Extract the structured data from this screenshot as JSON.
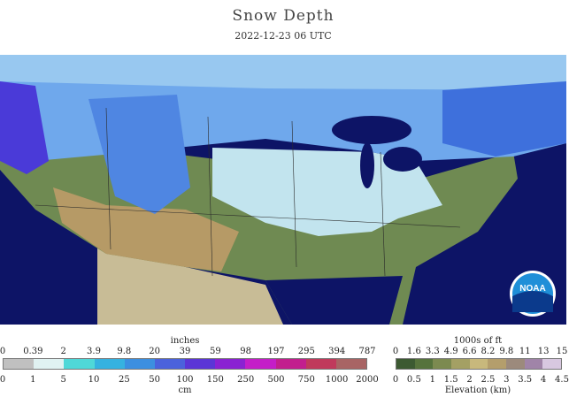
{
  "title": "Snow Depth",
  "timestamp": "2022-12-23 06 UTC",
  "logo_text": "NOAA",
  "snow_legend": {
    "top_unit": "inches",
    "top_ticks": [
      "0",
      "0.39",
      "2",
      "3.9",
      "9.8",
      "20",
      "39",
      "59",
      "98",
      "197",
      "295",
      "394",
      "787"
    ],
    "bottom_unit": "cm",
    "bottom_ticks": [
      "0",
      "1",
      "5",
      "10",
      "25",
      "50",
      "100",
      "150",
      "250",
      "500",
      "750",
      "1000",
      "2000"
    ],
    "colors": [
      "#c0c0c0",
      "#e0f2f2",
      "#4fd8d8",
      "#36b2e0",
      "#3c8fe0",
      "#4b62dc",
      "#5b36d6",
      "#8a22d2",
      "#c41ec8",
      "#c21f8e",
      "#c03a5c",
      "#a86464"
    ]
  },
  "elev_legend": {
    "top_unit": "1000s of ft",
    "top_ticks": [
      "0",
      "1.6",
      "3.3",
      "4.9",
      "6.6",
      "8.2",
      "9.8",
      "11",
      "13",
      "15"
    ],
    "bottom_unit": "Elevation (km)",
    "bottom_ticks": [
      "0",
      "0.5",
      "1",
      "1.5",
      "2",
      "2.5",
      "3",
      "3.5",
      "4",
      "4.5"
    ],
    "colors": [
      "#3c5a32",
      "#56733c",
      "#7c8a50",
      "#a4a064",
      "#c8b87c",
      "#b49e6c",
      "#9c8a7c",
      "#a084a8",
      "#d8c8e0"
    ]
  }
}
